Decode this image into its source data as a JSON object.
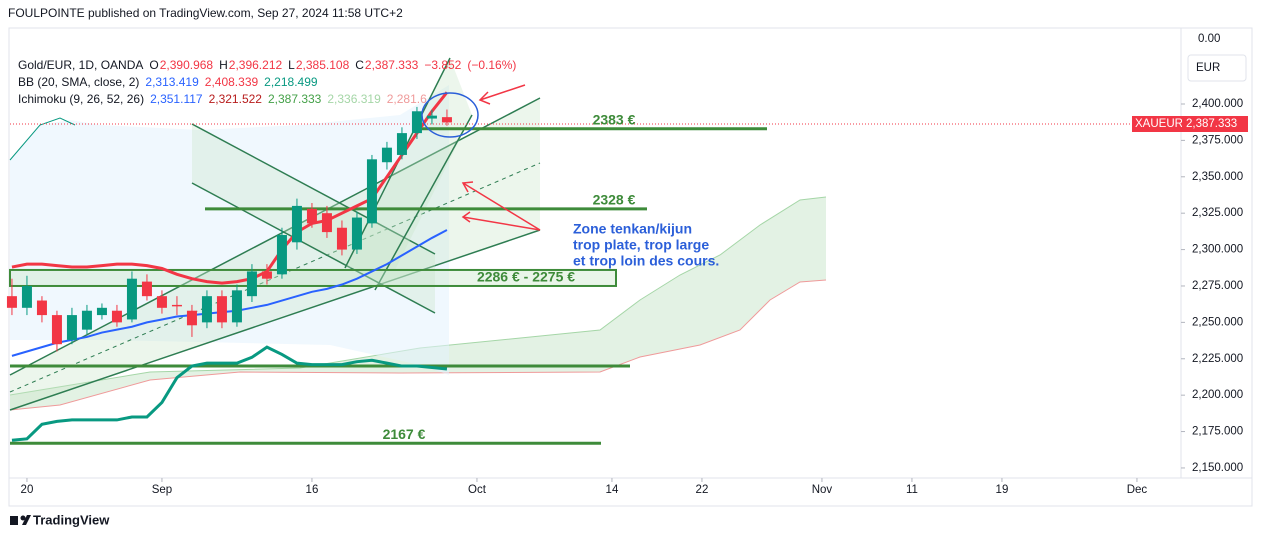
{
  "header": {
    "byline": "FOULPOINTE published on TradingView.com, Sep 27, 2024 11:58 UTC+2",
    "brand": "TradingView"
  },
  "legend": [
    [
      {
        "t": "Gold/EUR, 1D, OANDA",
        "c": "#131722"
      },
      {
        "t": "O",
        "c": "#131722"
      },
      {
        "t": "2,390.968",
        "c": "#f23645"
      },
      {
        "t": "H",
        "c": "#131722"
      },
      {
        "t": "2,396.212",
        "c": "#f23645"
      },
      {
        "t": "L",
        "c": "#131722"
      },
      {
        "t": "2,385.108",
        "c": "#f23645"
      },
      {
        "t": "C",
        "c": "#131722"
      },
      {
        "t": "2,387.333",
        "c": "#f23645"
      },
      {
        "t": "−3.852",
        "c": "#f23645"
      },
      {
        "t": "(−0.16%)",
        "c": "#f23645"
      }
    ],
    [
      {
        "t": "BB (20, SMA, close, 2)",
        "c": "#131722"
      },
      {
        "t": "2,313.419",
        "c": "#2962ff"
      },
      {
        "t": "2,408.339",
        "c": "#f23645"
      },
      {
        "t": "2,218.499",
        "c": "#089981"
      }
    ],
    [
      {
        "t": "Ichimoku (9, 26, 52, 26)",
        "c": "#131722"
      },
      {
        "t": "2,351.117",
        "c": "#2962ff"
      },
      {
        "t": "2,321.522",
        "c": "#b71c1c"
      },
      {
        "t": "2,387.333",
        "c": "#43a047"
      },
      {
        "t": "2,336.319",
        "c": "#a5d6a7"
      },
      {
        "t": "2,281.6",
        "c": "#ef9a9a"
      }
    ]
  ],
  "toolbar": {
    "top_value": "0.00",
    "currency": "EUR",
    "symbol": "XAUEUR",
    "last_price": "2,387.333"
  },
  "chart_data": {
    "type": "candlestick",
    "x": [
      0,
      1,
      2,
      3,
      4,
      5,
      6,
      7,
      8,
      9,
      10,
      11,
      12,
      13,
      14,
      15,
      16,
      17,
      18,
      19,
      20,
      21,
      22,
      23,
      24,
      25,
      26,
      27,
      28,
      29
    ],
    "open": [
      2268,
      2260,
      2265,
      2255,
      2238,
      2245,
      2255,
      2258,
      2252,
      2278,
      2268,
      2262,
      2258,
      2250,
      2268,
      2250,
      2268,
      2285,
      2283,
      2305,
      2328,
      2325,
      2315,
      2300,
      2318,
      2360,
      2365,
      2380,
      2390,
      2390.968
    ],
    "high": [
      2280,
      2282,
      2268,
      2258,
      2260,
      2262,
      2263,
      2262,
      2285,
      2283,
      2272,
      2268,
      2262,
      2272,
      2272,
      2276,
      2290,
      2290,
      2315,
      2335,
      2332,
      2330,
      2320,
      2326,
      2365,
      2374,
      2384,
      2398,
      2396,
      2396.212
    ],
    "low": [
      2255,
      2255,
      2250,
      2230,
      2235,
      2242,
      2252,
      2247,
      2250,
      2265,
      2256,
      2255,
      2240,
      2246,
      2246,
      2247,
      2264,
      2276,
      2280,
      2300,
      2315,
      2308,
      2296,
      2297,
      2315,
      2355,
      2362,
      2376,
      2386,
      2385.108
    ],
    "close": [
      2260,
      2275,
      2255,
      2235,
      2255,
      2258,
      2260,
      2250,
      2280,
      2268,
      2260,
      2261,
      2248,
      2268,
      2250,
      2272,
      2285,
      2280,
      2310,
      2330,
      2318,
      2312,
      2300,
      2322,
      2362,
      2370,
      2380,
      2395,
      2392,
      2387.333
    ],
    "up_color": "#089981",
    "down_color": "#f23645",
    "series": [
      {
        "color": "#2962ff",
        "width": 2,
        "values": [
          2227,
          2230,
          2233,
          2236,
          2238,
          2240,
          2243,
          2245,
          2247,
          2250,
          2252,
          2254,
          2255,
          2256,
          2257,
          2258,
          2260,
          2262,
          2265,
          2268,
          2271,
          2273,
          2276,
          2280,
          2285,
          2290,
          2296,
          2302,
          2308,
          2313.419
        ]
      },
      {
        "color": "#f23645",
        "width": 3,
        "values": [
          2288,
          2290,
          2290,
          2289,
          2288,
          2288,
          2289,
          2290,
          2290,
          2289,
          2287,
          2283,
          2280,
          2278,
          2277,
          2278,
          2280,
          2285,
          2300,
          2312,
          2318,
          2320,
          2325,
          2330,
          2335,
          2350,
          2365,
          2380,
          2395,
          2408
        ]
      },
      {
        "color": "#089981",
        "width": 3,
        "values": [
          2169,
          2170,
          2180,
          2182,
          2183,
          2183,
          2183,
          2183,
          2185,
          2185,
          2195,
          2212,
          2220,
          2222,
          2222,
          2222,
          2226,
          2233,
          2228,
          2222,
          2221,
          2221,
          2221,
          2223,
          2224,
          2222,
          2220,
          2220,
          2219,
          2218
        ]
      }
    ],
    "levels": [
      {
        "label": "2383 €",
        "value": 2383
      },
      {
        "label": "2328 €",
        "value": 2328
      },
      {
        "label": "2286 € - 2275 €",
        "value": 2286,
        "low": 2275
      },
      {
        "label": "2167 €",
        "value": 2167
      }
    ],
    "note": [
      "Zone tenkan/kijun",
      "trop plate, trop large",
      "et trop loin des cours."
    ],
    "xlim": [
      -0.13,
      77.87
    ],
    "xticks": [
      {
        "value": 1,
        "label": "20"
      },
      {
        "value": 10,
        "label": "Sep"
      },
      {
        "value": 20,
        "label": "16"
      },
      {
        "value": 31,
        "label": "Oct"
      },
      {
        "value": 40,
        "label": "14"
      },
      {
        "value": 46,
        "label": "22"
      },
      {
        "value": 54,
        "label": "Nov"
      },
      {
        "value": 60,
        "label": "11"
      },
      {
        "value": 66,
        "label": "19"
      },
      {
        "value": 75,
        "label": "Dec"
      }
    ],
    "ylim": [
      2143.1,
      2452.2
    ],
    "yticks": [
      {
        "value": 2150,
        "label": "2,150.000"
      },
      {
        "value": 2175,
        "label": "2,175.000"
      },
      {
        "value": 2200,
        "label": "2,200.000"
      },
      {
        "value": 2225,
        "label": "2,225.000"
      },
      {
        "value": 2250,
        "label": "2,250.000"
      },
      {
        "value": 2275,
        "label": "2,275.000"
      },
      {
        "value": 2300,
        "label": "2,300.000"
      },
      {
        "value": 2325,
        "label": "2,325.000"
      },
      {
        "value": 2350,
        "label": "2,350.000"
      },
      {
        "value": 2375,
        "label": "2,375.000"
      },
      {
        "value": 2400,
        "label": "2,400.000"
      }
    ]
  }
}
